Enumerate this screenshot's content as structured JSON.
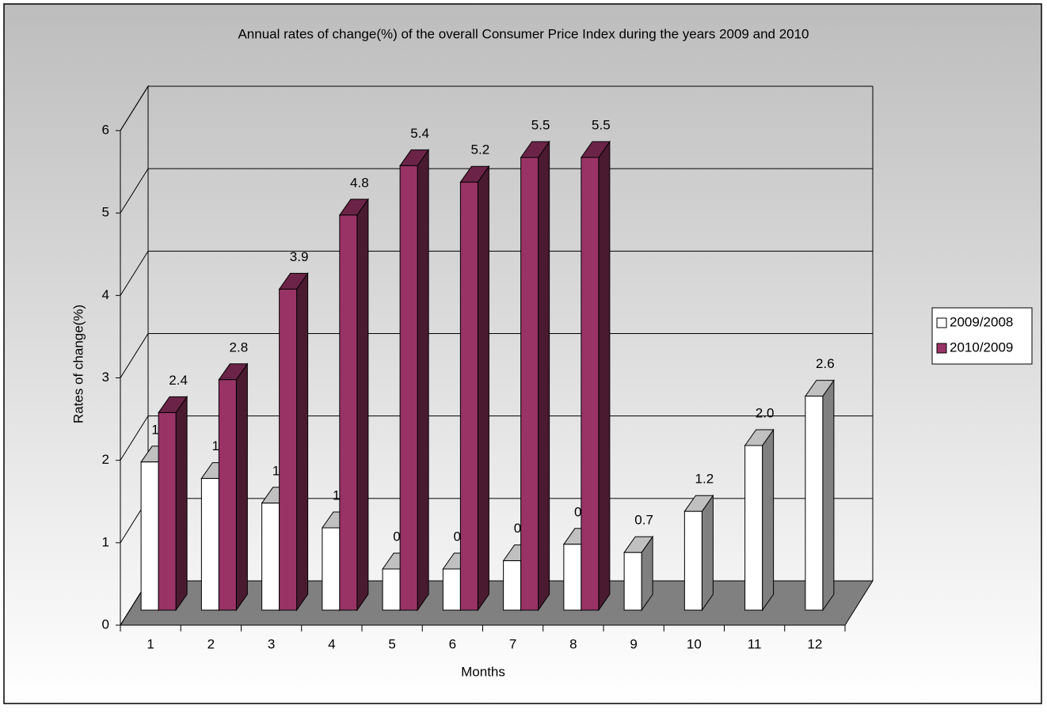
{
  "chart_data": {
    "type": "bar3d",
    "title": "Annual rates of change(%) of the overall Consumer Price Index during the years 2009 and 2010",
    "x_label": "Months",
    "y_label": "Rates of change(%)",
    "categories": [
      "1",
      "2",
      "3",
      "4",
      "5",
      "6",
      "7",
      "8",
      "9",
      "10",
      "11",
      "12"
    ],
    "series": [
      {
        "name": "2009/2008",
        "color": "#ffffff",
        "values": [
          1.8,
          1.6,
          1.3,
          1.0,
          0.5,
          0.5,
          0.6,
          0.8,
          0.7,
          1.2,
          2.0,
          2.6
        ],
        "value_labels": [
          "1.8",
          "1.6",
          "1.3",
          "1.0",
          "0.5",
          "0.5",
          "0.6",
          "0.8",
          "0.7",
          "1.2",
          "2.0",
          "2.6"
        ]
      },
      {
        "name": "2010/2009",
        "color": "#993366",
        "values": [
          2.4,
          2.8,
          3.9,
          4.8,
          5.4,
          5.2,
          5.5,
          5.5,
          null,
          null,
          null,
          null
        ]
      }
    ],
    "ylim": [
      0,
      6
    ],
    "yticks": [
      0,
      1,
      2,
      3,
      4,
      5,
      6
    ],
    "grid": true,
    "legend": "right"
  }
}
